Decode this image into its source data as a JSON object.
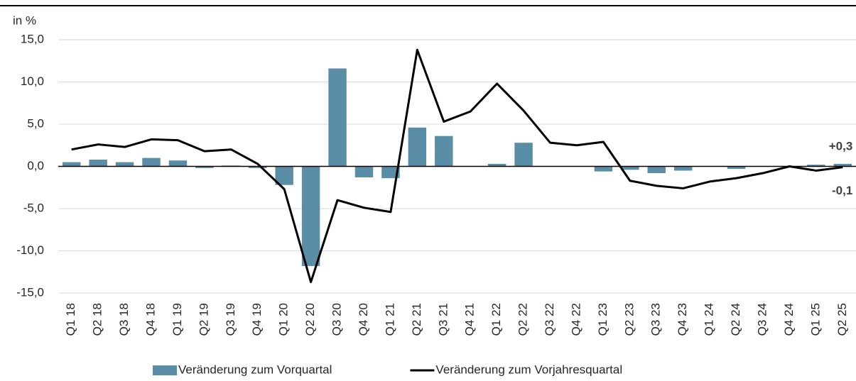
{
  "chart_data": {
    "type": "bar-line",
    "y_axis_label": "in %",
    "categories": [
      "Q1 18",
      "Q2 18",
      "Q3 18",
      "Q4 18",
      "Q1 19",
      "Q2 19",
      "Q3 19",
      "Q4 19",
      "Q1 20",
      "Q2 20",
      "Q3 20",
      "Q4 20",
      "Q1 21",
      "Q2 21",
      "Q3 21",
      "Q4 21",
      "Q1 22",
      "Q2 22",
      "Q3 22",
      "Q4 22",
      "Q1 23",
      "Q2 23",
      "Q3 23",
      "Q4 23",
      "Q1 24",
      "Q2 24",
      "Q3 24",
      "Q4 24",
      "Q1 25",
      "Q2 25"
    ],
    "series": [
      {
        "name": "Veränderung zum Vorquartal",
        "type": "bar",
        "color": "#5a8ea6",
        "values": [
          0.5,
          0.8,
          0.5,
          1.0,
          0.7,
          -0.2,
          0.1,
          -0.2,
          -2.2,
          -11.8,
          11.6,
          -1.3,
          -1.4,
          4.6,
          3.6,
          0.0,
          0.3,
          2.8,
          0.0,
          0.0,
          -0.6,
          -0.4,
          -0.8,
          -0.5,
          0.0,
          -0.3,
          0.0,
          0.0,
          0.2,
          0.3
        ],
        "value_labels": [
          null,
          null,
          null,
          null,
          null,
          null,
          null,
          null,
          null,
          null,
          null,
          null,
          null,
          null,
          null,
          null,
          null,
          null,
          null,
          null,
          null,
          null,
          null,
          null,
          null,
          null,
          null,
          null,
          null,
          "+0,3"
        ]
      },
      {
        "name": "Veränderung zum Vorjahresquartal",
        "type": "line",
        "color": "#000000",
        "values": [
          2.0,
          2.6,
          2.3,
          3.2,
          3.1,
          1.8,
          2.0,
          0.3,
          -2.7,
          -13.7,
          -4.0,
          -4.9,
          -5.4,
          13.8,
          5.3,
          6.5,
          9.8,
          6.6,
          2.8,
          2.5,
          2.9,
          -1.7,
          -2.3,
          -2.6,
          -1.8,
          -1.4,
          -0.8,
          0.0,
          -0.5,
          -0.1
        ],
        "value_labels": [
          null,
          null,
          null,
          null,
          null,
          null,
          null,
          null,
          null,
          null,
          null,
          null,
          null,
          null,
          null,
          null,
          null,
          null,
          null,
          null,
          null,
          null,
          null,
          null,
          null,
          null,
          null,
          null,
          null,
          "-0,1"
        ]
      }
    ],
    "ylim": [
      -15,
      15
    ],
    "yticks": [
      {
        "value": -15,
        "label": "-15,0"
      },
      {
        "value": -10,
        "label": "-10,0"
      },
      {
        "value": -5,
        "label": "-5,0"
      },
      {
        "value": 0,
        "label": "0,0"
      },
      {
        "value": 5,
        "label": "5,0"
      },
      {
        "value": 10,
        "label": "10,0"
      },
      {
        "value": 15,
        "label": "15,0"
      }
    ],
    "grid": true,
    "legend": "bottom"
  }
}
